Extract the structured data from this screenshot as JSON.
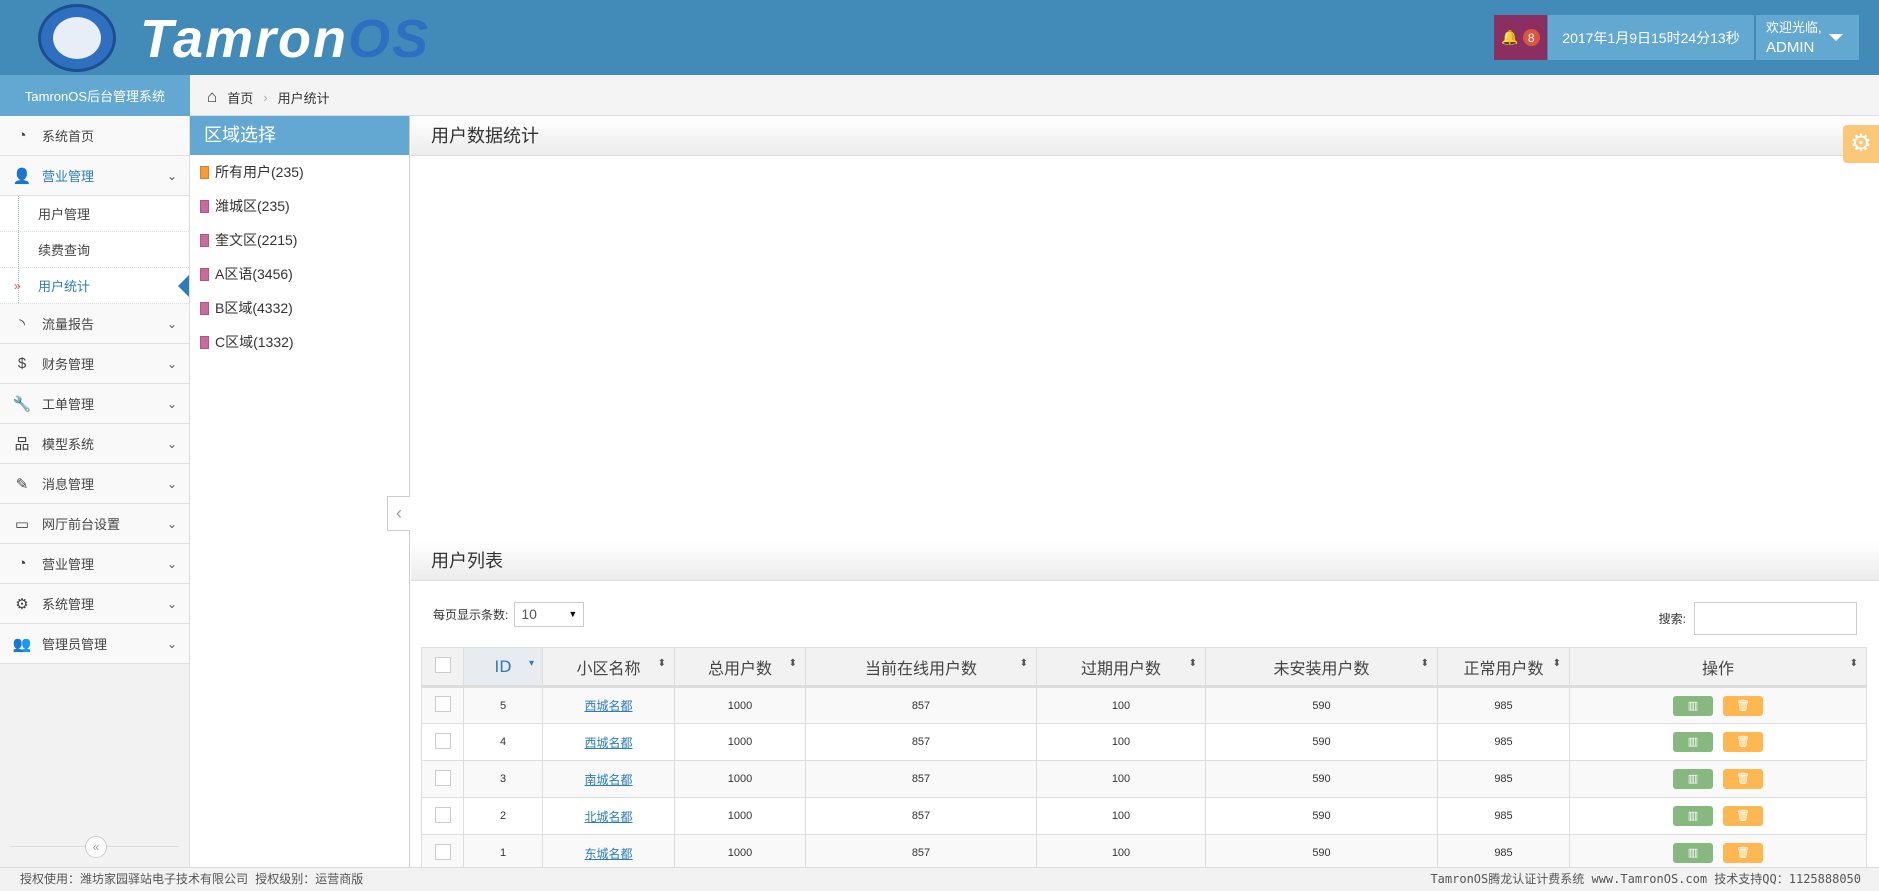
{
  "header": {
    "brand_main": "Tamron",
    "brand_accent": "OS",
    "notifications": "8",
    "datetime": "2017年1月9日15时24分13秒",
    "welcome": "欢迎光临,",
    "username": "ADMIN"
  },
  "breadcrumb": {
    "system_title": "TamronOS后台管理系统",
    "home": "首页",
    "current": "用户统计"
  },
  "sidebar": {
    "items": [
      {
        "label": "系统首页",
        "icon": "dashboard-icon",
        "glyph": "◔"
      },
      {
        "label": "营业管理",
        "icon": "user-icon",
        "glyph": "👤",
        "expanded": true
      },
      {
        "label": "流量报告",
        "icon": "rss-icon",
        "glyph": "◝"
      },
      {
        "label": "财务管理",
        "icon": "dollar-icon",
        "glyph": "$"
      },
      {
        "label": "工单管理",
        "icon": "wrench-icon",
        "glyph": "🔧"
      },
      {
        "label": "模型系统",
        "icon": "sitemap-icon",
        "glyph": "品"
      },
      {
        "label": "消息管理",
        "icon": "edit-icon",
        "glyph": "✎"
      },
      {
        "label": "网厅前台设置",
        "icon": "desktop-icon",
        "glyph": "▭"
      },
      {
        "label": "营业管理",
        "icon": "dashboard-icon",
        "glyph": "◔"
      },
      {
        "label": "系统管理",
        "icon": "cogs-icon",
        "glyph": "⚙"
      },
      {
        "label": "管理员管理",
        "icon": "users-icon",
        "glyph": "👥"
      }
    ],
    "subitems": [
      "用户管理",
      "续费查询",
      "用户统计"
    ],
    "active_sub": "用户统计"
  },
  "region": {
    "title": "区域选择",
    "items": [
      "所有用户(235)",
      "潍城区(235)",
      "奎文区(2215)",
      "A区语(3456)",
      "B区域(4332)",
      "C区域(1332)"
    ]
  },
  "stats": {
    "title": "用户数据统计"
  },
  "list": {
    "title": "用户列表",
    "page_size_label": "每页显示条数:",
    "page_size": "10",
    "search_label": "搜索:",
    "search_value": "",
    "columns": [
      "ID",
      "小区名称",
      "总用户数",
      "当前在线用户数",
      "过期用户数",
      "未安装用户数",
      "正常用户数",
      "操作"
    ],
    "rows": [
      {
        "id": "5",
        "name": "西城名都",
        "total": "1000",
        "online": "857",
        "expired": "100",
        "uninstalled": "590",
        "normal": "985"
      },
      {
        "id": "4",
        "name": "西城名都",
        "total": "1000",
        "online": "857",
        "expired": "100",
        "uninstalled": "590",
        "normal": "985"
      },
      {
        "id": "3",
        "name": "南城名都",
        "total": "1000",
        "online": "857",
        "expired": "100",
        "uninstalled": "590",
        "normal": "985"
      },
      {
        "id": "2",
        "name": "北城名都",
        "total": "1000",
        "online": "857",
        "expired": "100",
        "uninstalled": "590",
        "normal": "985"
      },
      {
        "id": "1",
        "name": "东城名都",
        "total": "1000",
        "online": "857",
        "expired": "100",
        "uninstalled": "590",
        "normal": "985"
      }
    ]
  },
  "footer": {
    "left": "授权使用：潍坊家园驿站电子技术有限公司 授权级别：运营商版",
    "right": "TamronOS腾龙认证计费系统 www.TamronOS.com 技术支持QQ：1125888050"
  },
  "colors": {
    "header": "#428bb9",
    "accent": "#63a8d2",
    "bell": "#8b2f63",
    "green": "#87b87f",
    "orange": "#ffb752"
  }
}
